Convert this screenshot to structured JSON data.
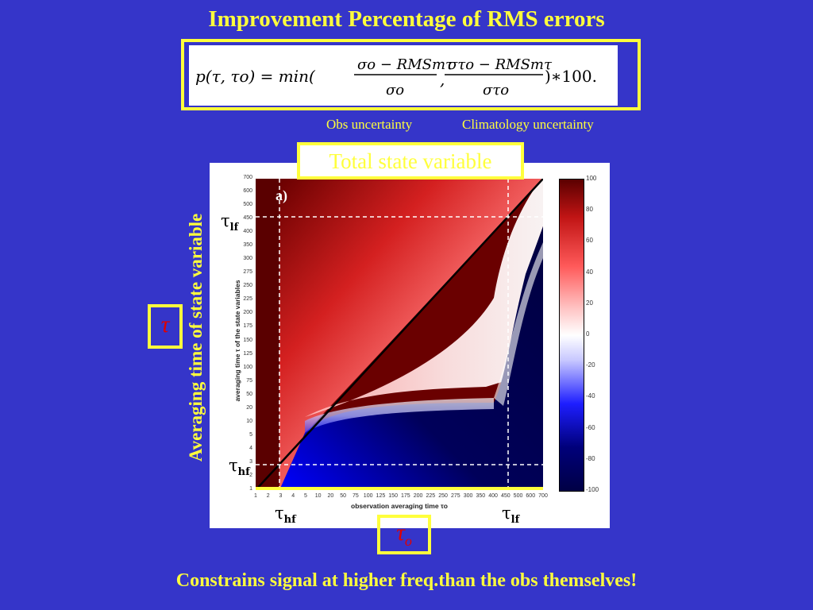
{
  "slide": {
    "title": "Improvement Percentage of RMS errors",
    "note_obs": "Obs uncertainty",
    "note_clim": "Climatology uncertainty",
    "state_label": "Total state variable",
    "ylabel_big": "Averaging time of state variable",
    "tau_symbol": "τ",
    "tau_o_symbol": "τ",
    "tau_o_sub": "o",
    "bottom_text": "Constrains signal at higher freq.than the obs themselves!"
  },
  "formula": {
    "lhs": "p(τ, τo) = min(",
    "num1": "σo − RMSmτ",
    "den1": "σo",
    "num2": "στo − RMSmτ",
    "den2": "στo",
    "tail": ")∗100."
  },
  "colors": {
    "background": "#3535c9",
    "highlight": "#ffff3c",
    "red_symbol": "#e00000"
  },
  "chart_data": {
    "type": "heatmap",
    "panel_label": "a)",
    "xlabel": "observation averaging time τo",
    "ylabel": "averaging time τ of the state variables",
    "x_ticks": [
      "1",
      "2",
      "3",
      "4",
      "5",
      "10",
      "20",
      "50",
      "75",
      "100",
      "125",
      "150",
      "175",
      "200",
      "225",
      "250",
      "275",
      "300",
      "350",
      "400",
      "450",
      "500",
      "600",
      "700"
    ],
    "y_ticks": [
      "1",
      "2",
      "3",
      "4",
      "5",
      "10",
      "20",
      "50",
      "75",
      "100",
      "125",
      "150",
      "175",
      "200",
      "225",
      "250",
      "275",
      "300",
      "350",
      "400",
      "450",
      "500",
      "600",
      "700"
    ],
    "colorbar_ticks": [
      "100",
      "80",
      "60",
      "40",
      "20",
      "0",
      "-20",
      "-40",
      "-60",
      "-80",
      "-100"
    ],
    "colorbar_range": [
      -100,
      100
    ],
    "annotations": [
      {
        "text": "τ",
        "sub": "lf",
        "axis": "y",
        "at": "450"
      },
      {
        "text": "τ",
        "sub": "hf",
        "axis": "y",
        "at": "3"
      },
      {
        "text": "τ",
        "sub": "hf",
        "axis": "x",
        "at": "3"
      },
      {
        "text": "τ",
        "sub": "lf",
        "axis": "x",
        "at": "450"
      }
    ]
  }
}
